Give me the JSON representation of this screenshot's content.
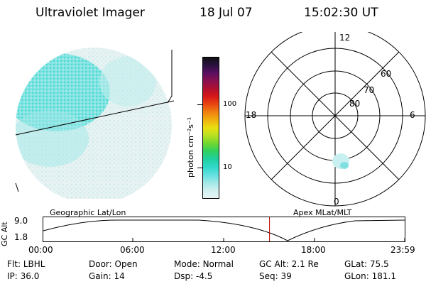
{
  "header": {
    "instrument": "Ultraviolet Imager",
    "date": "18 Jul 07",
    "time": "15:02:30 UT"
  },
  "colorbar": {
    "unit_label": "photon cm⁻²s⁻¹",
    "ticks": [
      "100",
      "10"
    ],
    "colors": [
      "#101010",
      "#2a1040",
      "#5a1060",
      "#8a1050",
      "#b01030",
      "#d81818",
      "#e84810",
      "#f08010",
      "#f0b010",
      "#e8e010",
      "#b8e020",
      "#70d830",
      "#30d060",
      "#20d0a0",
      "#30d8c8",
      "#60e0e0",
      "#a0e8e8",
      "#d0f0f0",
      "#e8f4f4"
    ]
  },
  "polar": {
    "labels": {
      "top": "12",
      "bottom": "0",
      "left": "18",
      "right": "6"
    },
    "lat_labels": [
      "60",
      "70",
      "80"
    ]
  },
  "timeline": {
    "left_label": "Geographic Lat/Lon",
    "right_label": "Apex MLat/MLT",
    "axis_title": "GC Alt",
    "y_ticks": [
      "9.0",
      "1.8"
    ],
    "x_ticks": [
      "00:00",
      "06:00",
      "12:00",
      "18:00",
      "23:59"
    ],
    "marker_color": "#c00000",
    "marker_fraction": 0.6267
  },
  "info": {
    "row1": [
      {
        "label": "Flt:",
        "value": "LBHL"
      },
      {
        "label": "Door:",
        "value": "Open"
      },
      {
        "label": "Mode:",
        "value": "Normal"
      },
      {
        "label": "GC Alt:",
        "value": "2.1 Re"
      },
      {
        "label": "GLat:",
        "value": "75.5"
      }
    ],
    "row2": [
      {
        "label": "IP:",
        "value": "36.0"
      },
      {
        "label": "Gain:",
        "value": "14"
      },
      {
        "label": "Dsp:",
        "value": "-4.5"
      },
      {
        "label": "Seq:",
        "value": "39"
      },
      {
        "label": "GLon:",
        "value": "181.1"
      }
    ]
  }
}
